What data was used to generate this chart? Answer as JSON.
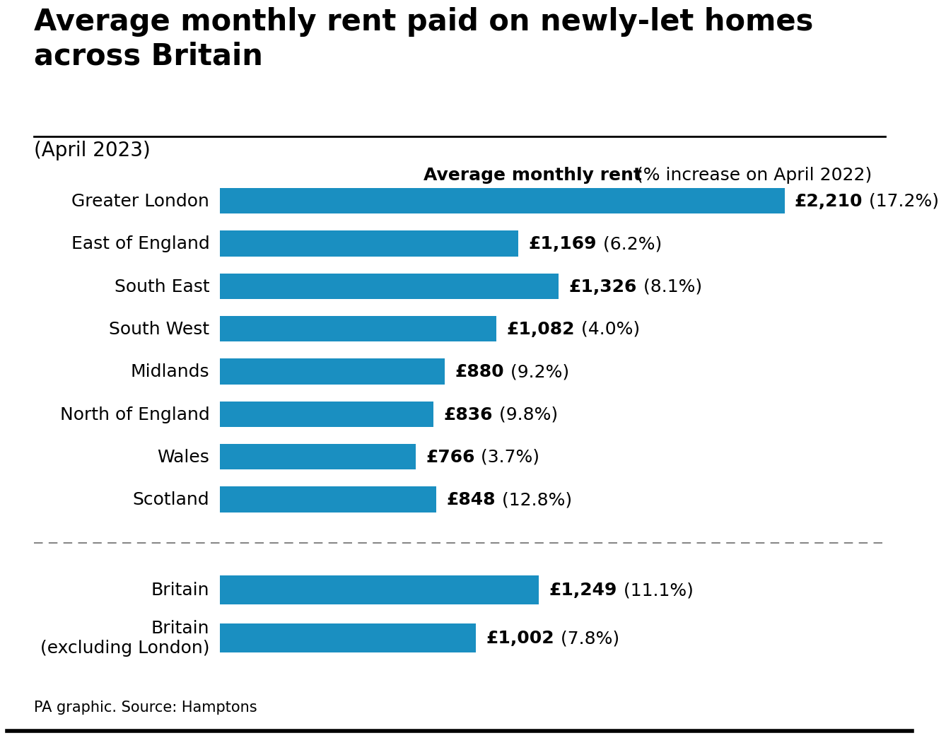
{
  "title": "Average monthly rent paid on newly-let homes\nacross Britain",
  "subtitle": "(April 2023)",
  "col_header_left": "Average monthly rent",
  "col_header_right": "(% increase on April 2022)",
  "bar_color": "#1a8fc1",
  "background_color": "#ffffff",
  "source": "PA graphic. Source: Hamptons",
  "main_categories": [
    "Greater London",
    "East of England",
    "South East",
    "South West",
    "Midlands",
    "North of England",
    "Wales",
    "Scotland"
  ],
  "main_values": [
    2210,
    1169,
    1326,
    1082,
    880,
    836,
    766,
    848
  ],
  "main_bold_parts": [
    "£2,210",
    "£1,169",
    "£1,326",
    "£1,082",
    "£880",
    "£836",
    "£766",
    "£848"
  ],
  "main_normal_parts": [
    " (17.2%)",
    " (6.2%)",
    " (8.1%)",
    " (4.0%)",
    " (9.2%)",
    " (9.8%)",
    " (3.7%)",
    " (12.8%)"
  ],
  "summary_categories": [
    "Britain",
    "Britain\n(excluding London)"
  ],
  "summary_values": [
    1249,
    1002
  ],
  "summary_bold_parts": [
    "£1,249",
    "£1,002"
  ],
  "summary_normal_parts": [
    " (11.1%)",
    " (7.8%)"
  ],
  "xlim": [
    0,
    2550
  ],
  "title_fontsize": 30,
  "subtitle_fontsize": 20,
  "category_fontsize": 18,
  "label_fontsize": 18,
  "header_fontsize": 18,
  "source_fontsize": 15
}
